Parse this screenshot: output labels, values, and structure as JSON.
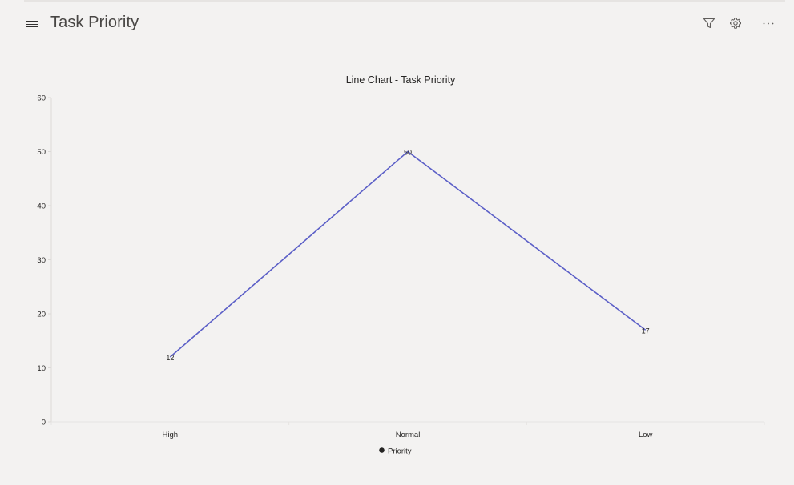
{
  "header": {
    "title": "Task Priority",
    "icons": [
      "menu-icon",
      "filter-icon",
      "settings-icon",
      "more-icon"
    ],
    "more_label": "···"
  },
  "chart_data": {
    "type": "line",
    "title": "Line Chart - Task Priority",
    "categories": [
      "High",
      "Normal",
      "Low"
    ],
    "series": [
      {
        "name": "Priority",
        "values": [
          12,
          50,
          17
        ],
        "color": "#5b5fc7"
      }
    ],
    "data_labels": [
      "12",
      "50",
      "17"
    ],
    "y_ticks": [
      "0",
      "10",
      "20",
      "30",
      "40",
      "50",
      "60"
    ],
    "ylim": [
      0,
      60
    ],
    "xlabel": "",
    "ylabel": "",
    "grid": false,
    "legend_placement": "bottom",
    "legend_marker_color": "#252423"
  }
}
